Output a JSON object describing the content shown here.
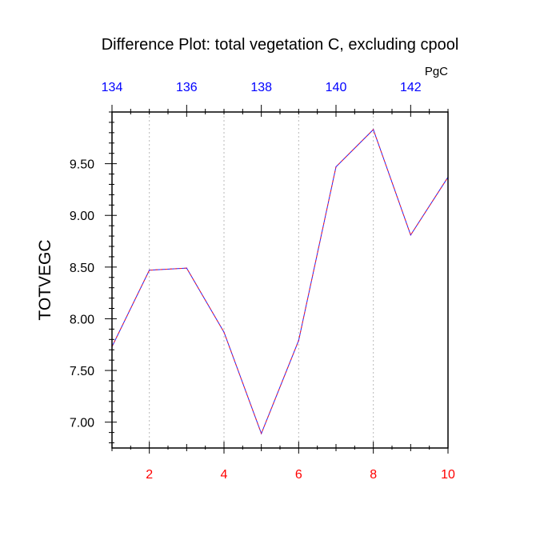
{
  "chart_data": {
    "type": "line",
    "title": "Difference Plot: total vegetation C, excluding cpool",
    "units": "PgC",
    "xlabel": "",
    "ylabel": "TOTVEGC",
    "x": [
      1,
      2,
      3,
      4,
      5,
      6,
      7,
      8,
      9,
      10
    ],
    "series": [
      {
        "values": [
          7.73,
          8.47,
          8.49,
          7.87,
          6.89,
          7.79,
          9.47,
          9.83,
          8.81,
          9.37
        ],
        "color": "#7a00c8",
        "style": "dashed"
      }
    ],
    "xlim": [
      1,
      10
    ],
    "ylim": [
      6.75,
      10.0
    ],
    "x_ticks": [
      2,
      4,
      6,
      8,
      10
    ],
    "x_tick_labels": [
      "2",
      "4",
      "6",
      "8",
      "10"
    ],
    "x_tick_color": "#ff0000",
    "y_ticks": [
      7.0,
      7.5,
      8.0,
      8.5,
      9.0,
      9.5
    ],
    "y_tick_labels": [
      "7.00",
      "7.50",
      "8.00",
      "8.50",
      "9.00",
      "9.50"
    ],
    "top_axis": {
      "lim": [
        134,
        143
      ],
      "ticks": [
        134,
        136,
        138,
        140,
        142
      ],
      "tick_labels": [
        "134",
        "136",
        "138",
        "140",
        "142"
      ],
      "color": "#0000ff"
    },
    "grid": "vertical-dotted"
  }
}
